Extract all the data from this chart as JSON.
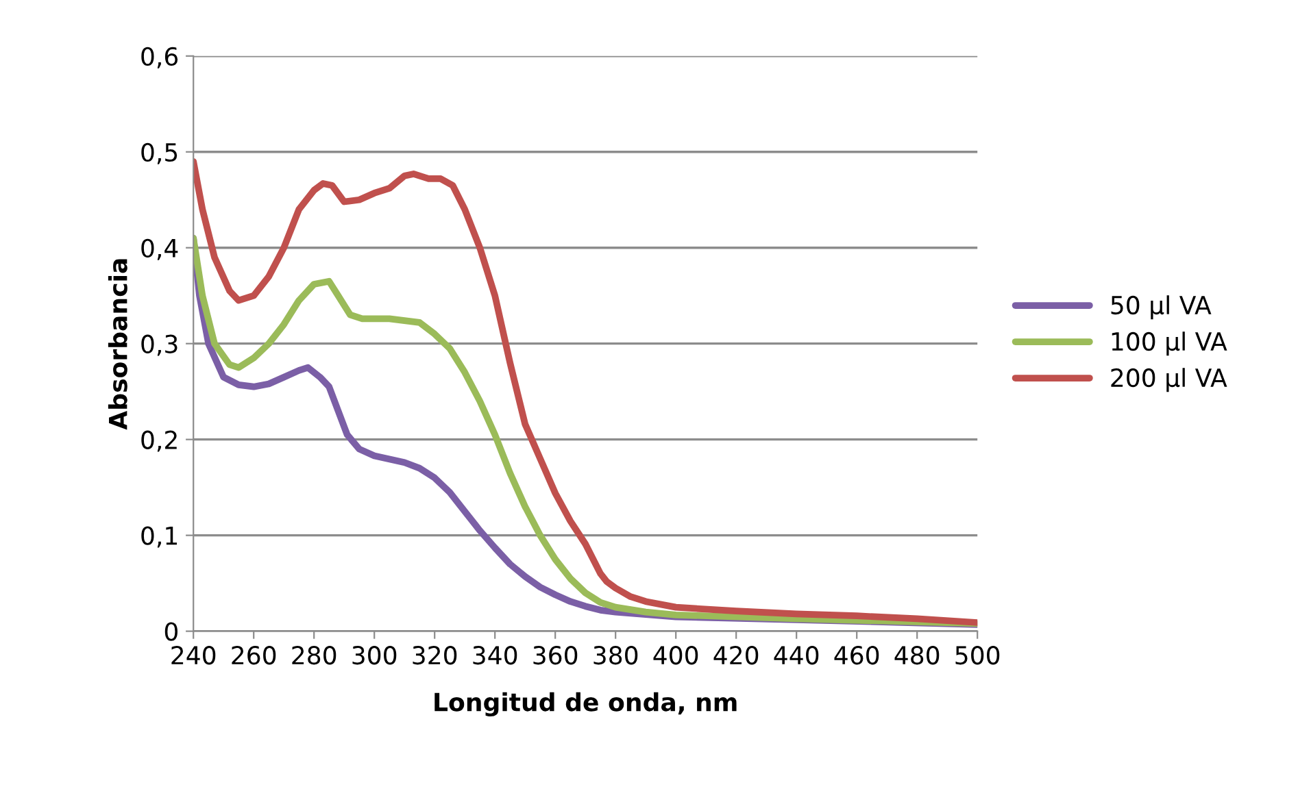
{
  "chart_data": {
    "type": "line",
    "xlabel": "Longitud de onda, nm",
    "ylabel": "Absorbancia",
    "xlim": [
      240,
      500
    ],
    "xticks": [
      240,
      260,
      280,
      300,
      320,
      340,
      360,
      380,
      400,
      420,
      440,
      460,
      480,
      500
    ],
    "ylim": [
      0,
      0.6
    ],
    "yticks": [
      {
        "value": 0,
        "label": "0"
      },
      {
        "value": 0.1,
        "label": "0,1"
      },
      {
        "value": 0.2,
        "label": "0,2"
      },
      {
        "value": 0.3,
        "label": "0,3"
      },
      {
        "value": 0.4,
        "label": "0,4"
      },
      {
        "value": 0.5,
        "label": "0,5"
      },
      {
        "value": 0.6,
        "label": "0,6"
      }
    ],
    "grid": "y",
    "legend": "right",
    "marker": "none",
    "line_style": "solid",
    "series": [
      {
        "name": "50 µl VA",
        "color": "#7b5fa6",
        "x": [
          240,
          242,
          245,
          250,
          255,
          260,
          265,
          270,
          275,
          278,
          282,
          285,
          288,
          291,
          295,
          300,
          310,
          315,
          320,
          325,
          330,
          335,
          340,
          345,
          350,
          355,
          360,
          365,
          370,
          375,
          380,
          400,
          440,
          500
        ],
        "values": [
          0.41,
          0.35,
          0.3,
          0.265,
          0.257,
          0.255,
          0.258,
          0.265,
          0.272,
          0.275,
          0.265,
          0.255,
          0.23,
          0.205,
          0.19,
          0.183,
          0.176,
          0.17,
          0.16,
          0.145,
          0.125,
          0.105,
          0.087,
          0.07,
          0.057,
          0.046,
          0.038,
          0.031,
          0.026,
          0.022,
          0.02,
          0.015,
          0.012,
          0.007
        ]
      },
      {
        "name": "100 µl VA",
        "color": "#9bbb59",
        "x": [
          240,
          243,
          247,
          252,
          255,
          260,
          265,
          270,
          275,
          280,
          285,
          288,
          292,
          296,
          305,
          315,
          320,
          325,
          330,
          335,
          340,
          345,
          350,
          355,
          360,
          365,
          370,
          375,
          380,
          390,
          400,
          440,
          500
        ],
        "values": [
          0.41,
          0.35,
          0.3,
          0.278,
          0.275,
          0.285,
          0.3,
          0.32,
          0.345,
          0.362,
          0.365,
          0.35,
          0.33,
          0.326,
          0.326,
          0.322,
          0.31,
          0.295,
          0.27,
          0.24,
          0.205,
          0.165,
          0.13,
          0.1,
          0.075,
          0.055,
          0.04,
          0.03,
          0.025,
          0.02,
          0.017,
          0.013,
          0.008
        ]
      },
      {
        "name": "200 µl VA",
        "color": "#c0504d",
        "x": [
          240,
          243,
          247,
          252,
          255,
          260,
          265,
          270,
          275,
          280,
          283,
          286,
          290,
          295,
          300,
          305,
          310,
          313,
          318,
          322,
          326,
          330,
          335,
          340,
          345,
          350,
          355,
          360,
          365,
          370,
          375,
          377,
          380,
          385,
          390,
          400,
          420,
          440,
          460,
          480,
          500
        ],
        "values": [
          0.49,
          0.44,
          0.39,
          0.355,
          0.345,
          0.35,
          0.37,
          0.4,
          0.44,
          0.46,
          0.467,
          0.465,
          0.448,
          0.45,
          0.457,
          0.462,
          0.475,
          0.477,
          0.472,
          0.472,
          0.465,
          0.44,
          0.4,
          0.35,
          0.28,
          0.216,
          0.18,
          0.144,
          0.115,
          0.091,
          0.06,
          0.052,
          0.045,
          0.036,
          0.031,
          0.025,
          0.021,
          0.018,
          0.016,
          0.013,
          0.009
        ]
      }
    ]
  }
}
